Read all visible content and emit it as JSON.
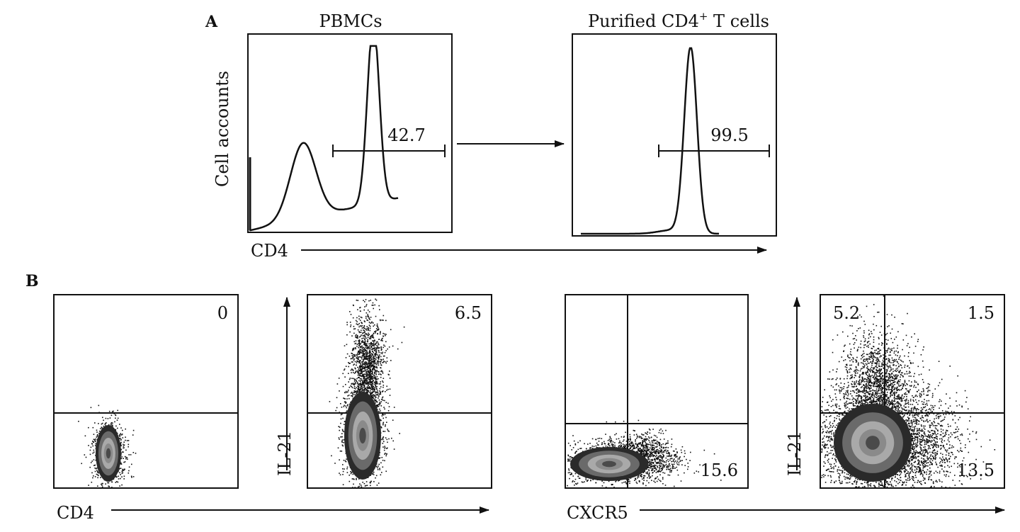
{
  "panel_a": {
    "letter": "A",
    "left_title": "PBMCs",
    "right_title_main": "Purified CD4",
    "right_title_sup": "+",
    "right_title_tail": " T cells",
    "ylabel": "Cell accounts",
    "xlabel": "CD4"
  },
  "panel_b": {
    "letter": "B",
    "left_xlabel": "CD4",
    "left_ylabel": "IL-21",
    "right_xlabel": "CXCR5",
    "right_ylabel": "IL-21"
  },
  "chart_data": [
    {
      "type": "histogram",
      "id": "pbmc-cd4-histogram",
      "title": "PBMCs",
      "xlabel": "CD4",
      "ylabel": "Cell accounts",
      "gate_value": "42.7",
      "peaks": [
        {
          "position": 0.02,
          "relative_height": 0.42,
          "shape": "edge spike"
        },
        {
          "position": 0.27,
          "relative_height": 0.44,
          "shape": "broad"
        },
        {
          "position": 0.7,
          "relative_height": 1.0,
          "shape": "sharp"
        }
      ]
    },
    {
      "type": "histogram",
      "id": "purified-cd4-histogram",
      "title": "Purified CD4+ T cells",
      "xlabel": "CD4",
      "gate_value": "99.5",
      "peaks": [
        {
          "position": 0.56,
          "relative_height": 1.0,
          "shape": "sharp"
        }
      ]
    },
    {
      "type": "density-plot",
      "id": "cd4-il21-control",
      "xlabel": "CD4",
      "ylabel": "IL-21",
      "quadrant_values": {
        "upper_right": "0"
      }
    },
    {
      "type": "density-plot",
      "id": "cd4-il21-stimulated",
      "xlabel": "CD4",
      "ylabel": "IL-21",
      "quadrant_values": {
        "upper_right": "6.5"
      }
    },
    {
      "type": "density-plot",
      "id": "cxcr5-il21-control",
      "xlabel": "CXCR5",
      "quadrant_values": {
        "lower_right": "15.6"
      }
    },
    {
      "type": "density-plot",
      "id": "cxcr5-il21-stimulated",
      "xlabel": "CXCR5",
      "ylabel": "IL-21",
      "quadrant_values": {
        "upper_left": "5.2",
        "upper_right": "1.5",
        "lower_right": "13.5"
      }
    }
  ]
}
